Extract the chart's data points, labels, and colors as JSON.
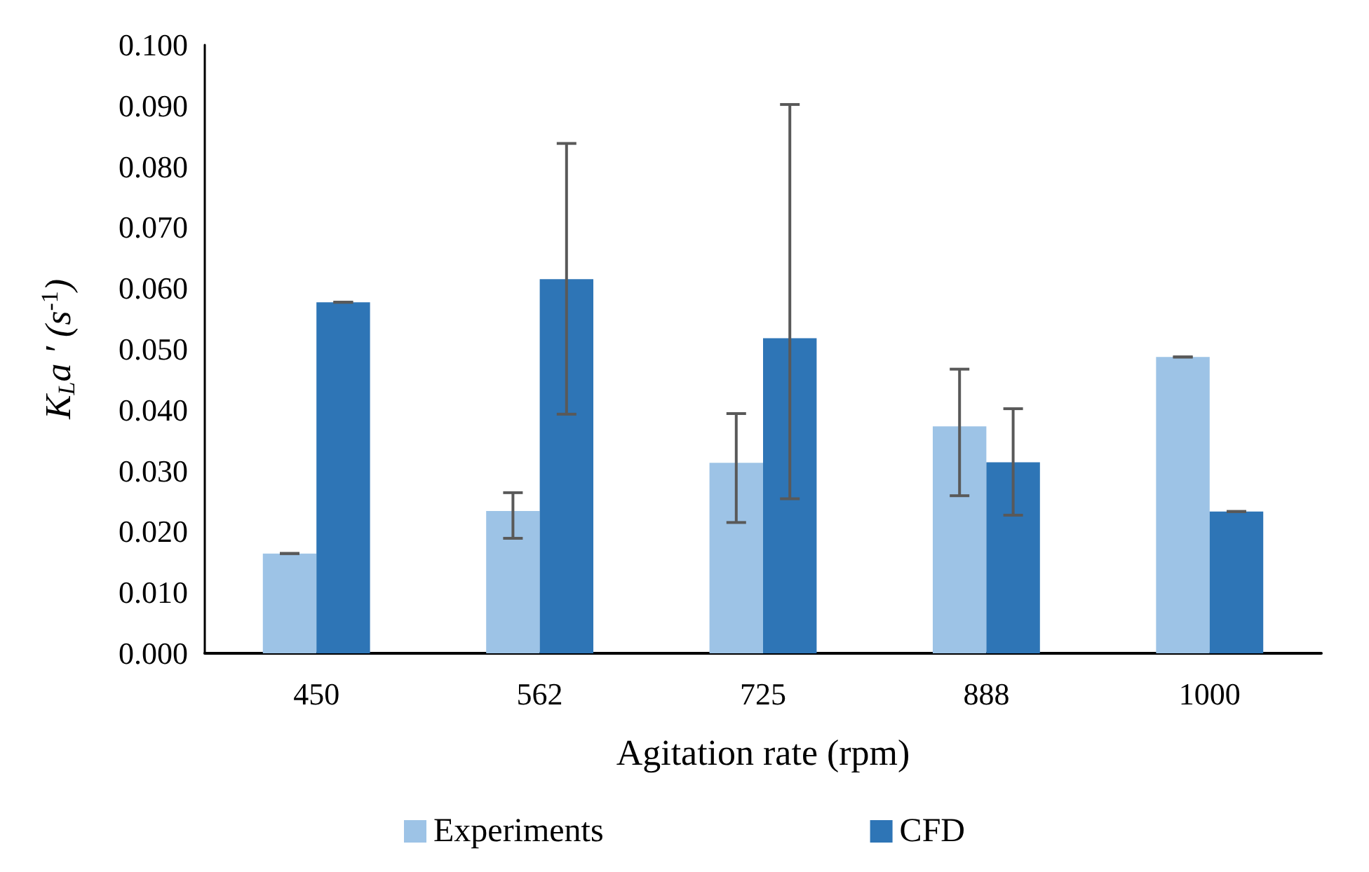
{
  "chart_data": {
    "type": "bar",
    "xlabel": "Agitation rate (rpm)",
    "ylabel": "K$_{L}$a ′ (s$^{-1}$)",
    "categories": [
      "450",
      "562",
      "725",
      "888",
      "1000"
    ],
    "series": [
      {
        "name": "Experiments",
        "color": "#9dc3e6",
        "values": [
          0.0164,
          0.0234,
          0.0313,
          0.0373,
          0.0487
        ],
        "errors": [
          0,
          [
            0.0189,
            0.0264
          ],
          [
            0.0215,
            0.0394
          ],
          [
            0.0259,
            0.0467
          ],
          0
        ]
      },
      {
        "name": "CFD",
        "color": "#2e75b6",
        "values": [
          0.0577,
          0.0615,
          0.0518,
          0.0314,
          0.0233
        ],
        "errors": [
          0,
          [
            0.0393,
            0.0838
          ],
          [
            0.0254,
            0.0902
          ],
          [
            0.0227,
            0.0402
          ],
          0
        ]
      }
    ],
    "ylim": [
      0,
      0.1
    ],
    "yticks": [
      {
        "value": 0,
        "label": "0.000"
      },
      {
        "value": 0.01,
        "label": "0.010"
      },
      {
        "value": 0.02,
        "label": "0.020"
      },
      {
        "value": 0.03,
        "label": "0.030"
      },
      {
        "value": 0.04,
        "label": "0.040"
      },
      {
        "value": 0.05,
        "label": "0.050"
      },
      {
        "value": 0.06,
        "label": "0.060"
      },
      {
        "value": 0.07,
        "label": "0.070"
      },
      {
        "value": 0.08,
        "label": "0.080"
      },
      {
        "value": 0.09,
        "label": "0.090"
      },
      {
        "value": 0.1,
        "label": "0.100"
      }
    ],
    "grid": false,
    "legend": "bottom"
  }
}
